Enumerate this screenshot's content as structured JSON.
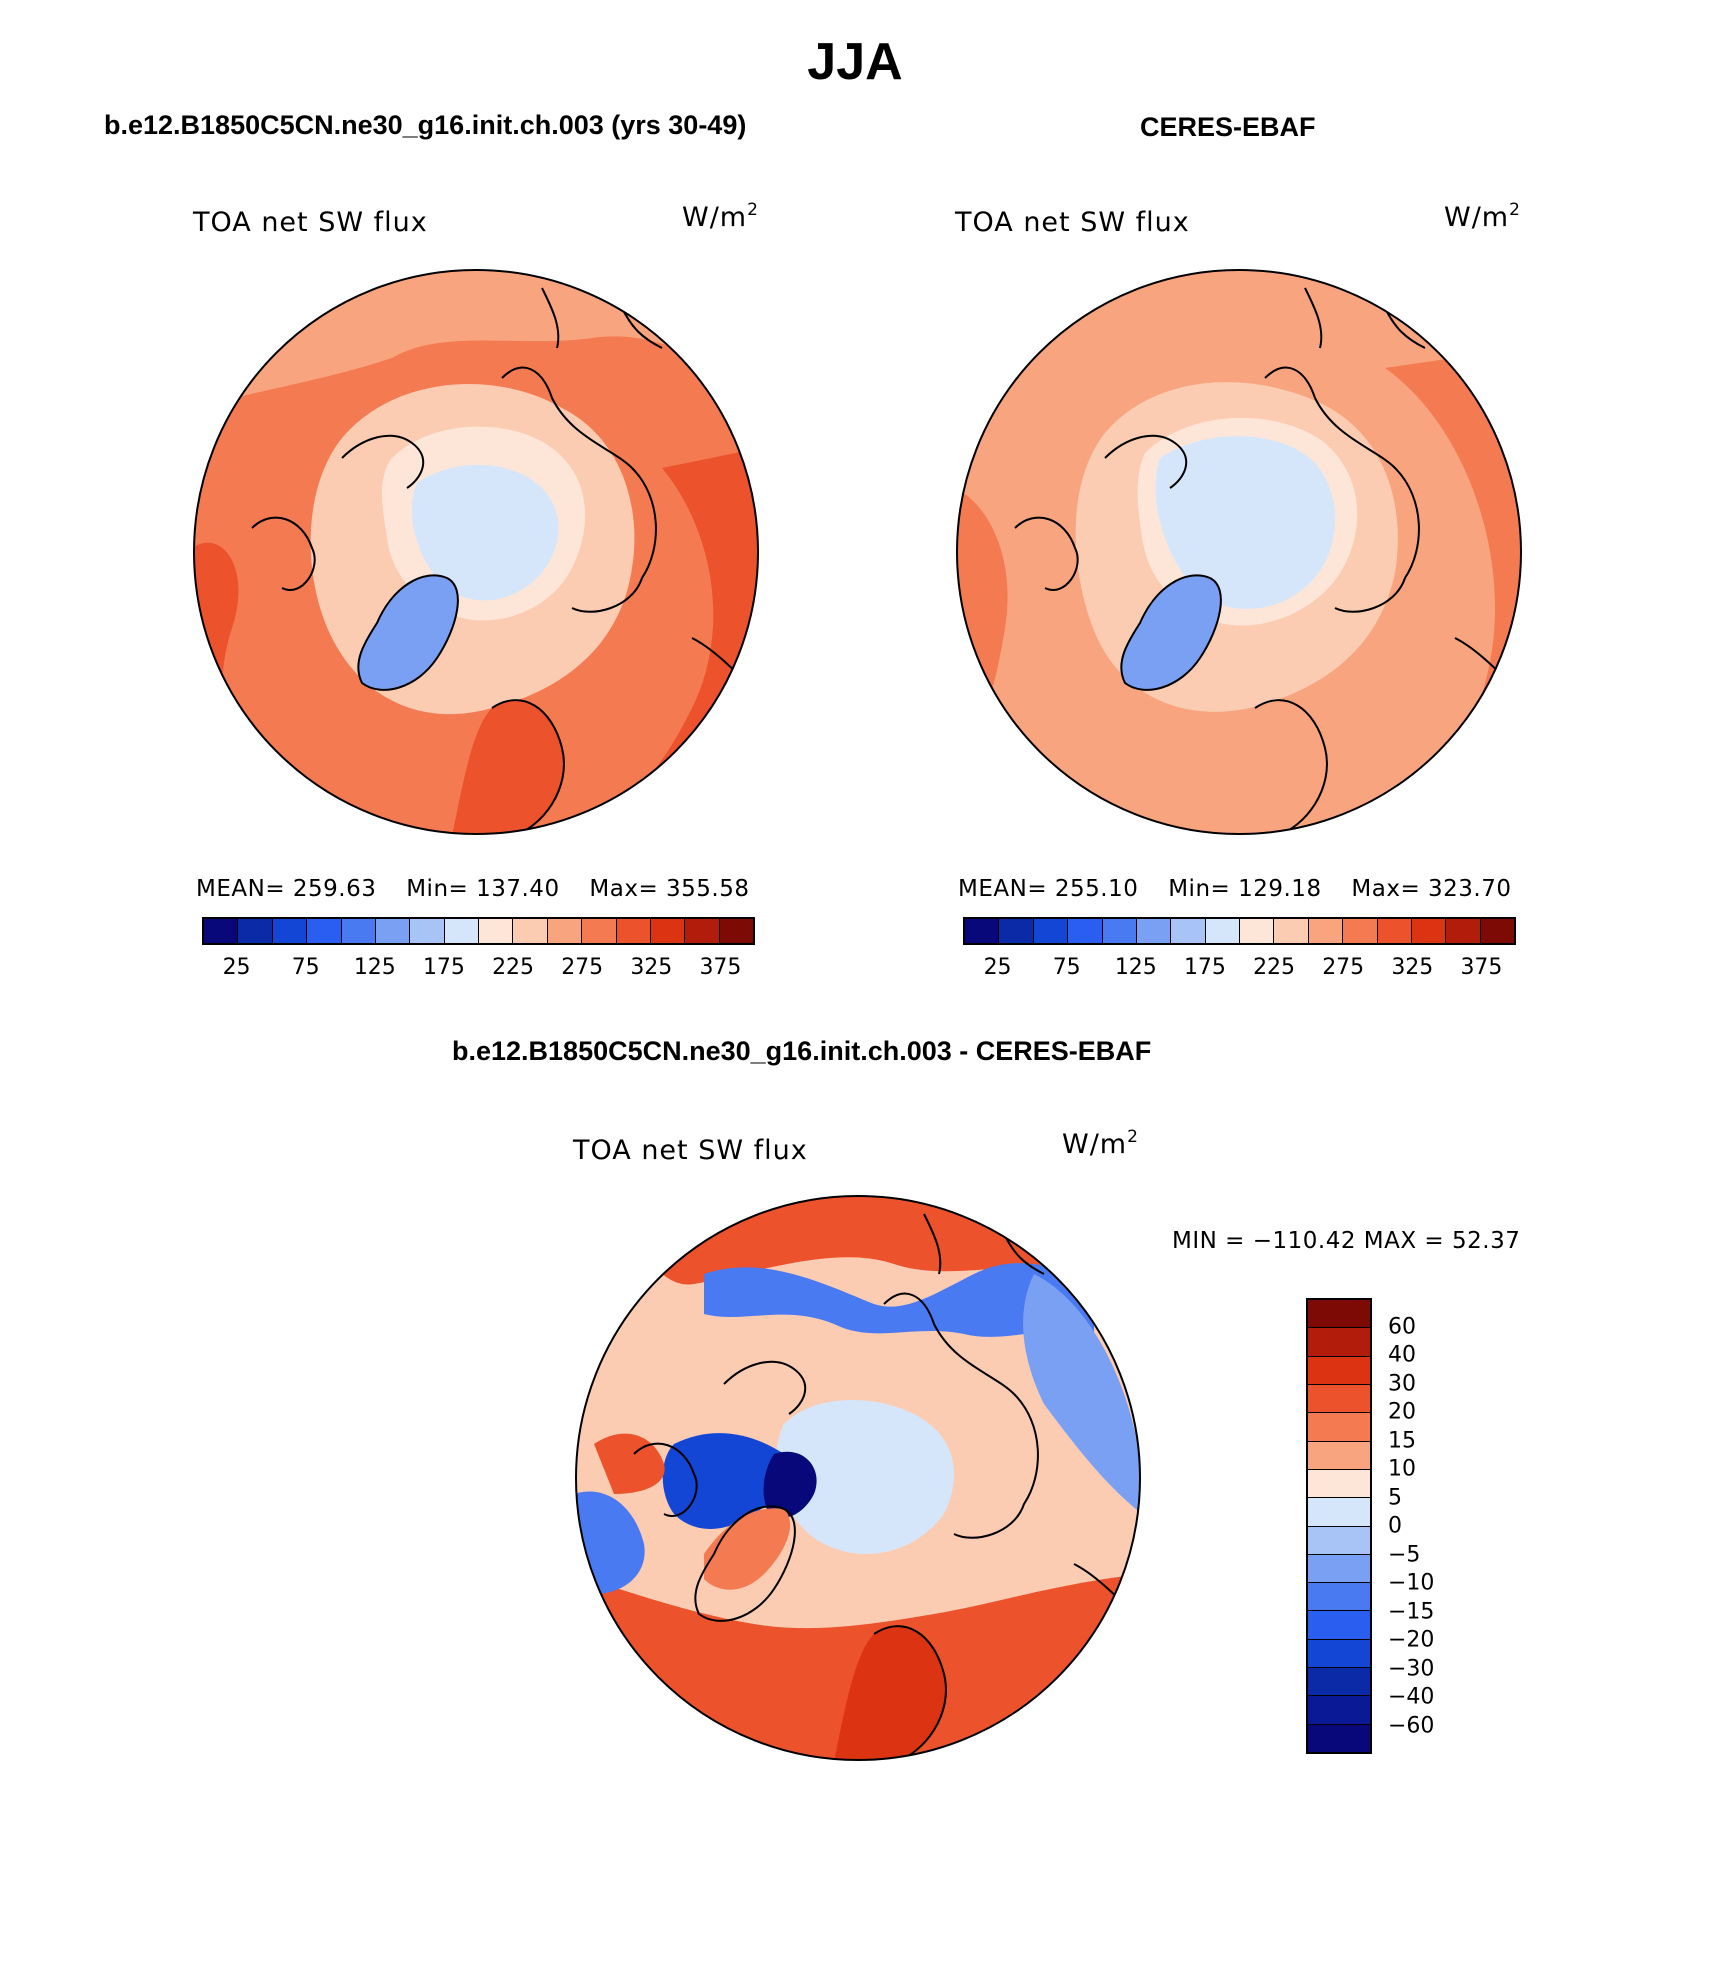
{
  "figure_title": "JJA",
  "left_panel": {
    "case": "b.e12.B1850C5CN.ne30_g16.init.ch.003 (yrs 30-49)",
    "variable": "TOA net SW flux",
    "units": "W/m",
    "units_sup": "2",
    "mean": "MEAN= 259.63",
    "min": "Min= 137.40",
    "max": "Max= 355.58"
  },
  "right_panel": {
    "case": "CERES-EBAF",
    "variable": "TOA net SW flux",
    "units": "W/m",
    "units_sup": "2",
    "mean": "MEAN= 255.10",
    "min": "Min= 129.18",
    "max": "Max= 323.70"
  },
  "diff_panel": {
    "case": "b.e12.B1850C5CN.ne30_g16.init.ch.003 - CERES-EBAF",
    "variable": "TOA net SW flux",
    "units": "W/m",
    "units_sup": "2",
    "minmax": "MIN = −110.42 MAX =   52.37"
  },
  "abs_colorbar": {
    "colors": [
      "#08087a",
      "#0a2aa8",
      "#1446d6",
      "#2a5ef0",
      "#4a7af2",
      "#7aa0f4",
      "#a8c4f6",
      "#d6e6fa",
      "#fde6d8",
      "#fbcbb2",
      "#f8a47e",
      "#f47a52",
      "#ec522c",
      "#dc3412",
      "#b21c0a",
      "#7e0a05"
    ],
    "ticks": [
      "25",
      "75",
      "125",
      "175",
      "225",
      "275",
      "325",
      "375"
    ]
  },
  "diff_colorbar": {
    "colors": [
      "#7e0a05",
      "#b21c0a",
      "#dc3412",
      "#ec522c",
      "#f47a52",
      "#f8a47e",
      "#fde6d8",
      "#d6e6fa",
      "#a8c4f6",
      "#7aa0f4",
      "#4a7af2",
      "#2a5ef0",
      "#1446d6",
      "#0a2aa8",
      "#0a1a96",
      "#08087a"
    ],
    "ticks": [
      "60",
      "40",
      "30",
      "20",
      "15",
      "10",
      "5",
      "0",
      "−5",
      "−10",
      "−15",
      "−20",
      "−30",
      "−40",
      "−60"
    ]
  }
}
